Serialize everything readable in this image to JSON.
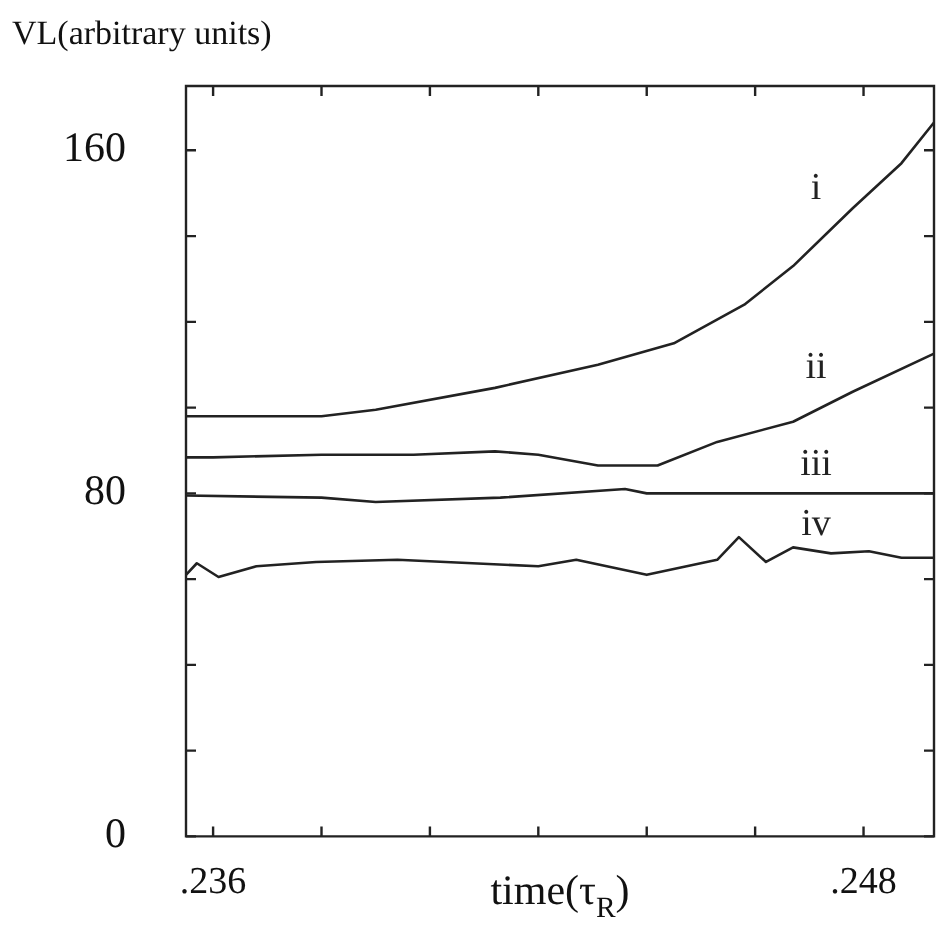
{
  "chart_data": {
    "type": "line",
    "ylabel": "VL(arbitrary units)",
    "xlabel": "time(τ$_{R}$)",
    "xlim": [
      0.2355,
      0.2493
    ],
    "ylim": [
      0,
      175
    ],
    "xticks": [
      {
        "value": 0.236,
        "label": ".236"
      },
      {
        "value": 0.238,
        "label": null
      },
      {
        "value": 0.24,
        "label": null
      },
      {
        "value": 0.242,
        "label": null
      },
      {
        "value": 0.244,
        "label": null
      },
      {
        "value": 0.246,
        "label": null
      },
      {
        "value": 0.248,
        "label": ".248"
      }
    ],
    "yticks": [
      0,
      {
        "value": 20,
        "label": null
      },
      {
        "value": 40,
        "label": null
      },
      {
        "value": 60,
        "label": null
      },
      80,
      {
        "value": 100,
        "label": null
      },
      {
        "value": 120,
        "label": null
      },
      {
        "value": 140,
        "label": null
      },
      160
    ],
    "grid": false,
    "legend": false,
    "marker": "none",
    "line_style": "solid",
    "series": [
      {
        "name": "i",
        "color": "#222222",
        "x": [
          0.2355,
          0.238,
          0.239,
          0.2412,
          0.2431,
          0.2445,
          0.2458,
          0.2467,
          0.2478,
          0.2487,
          0.2493
        ],
        "values": [
          98,
          98,
          99.5,
          104.6,
          110,
          115,
          124,
          133,
          146.5,
          157,
          166.5
        ]
      },
      {
        "name": "ii",
        "color": "#222222",
        "x": [
          0.2355,
          0.236,
          0.238,
          0.2397,
          0.2412,
          0.242,
          0.2431,
          0.2442,
          0.2453,
          0.2467,
          0.2478,
          0.2493
        ],
        "values": [
          88.4,
          88.4,
          89,
          89,
          89.8,
          89,
          86.5,
          86.5,
          92,
          96.7,
          103.7,
          112.6
        ]
      },
      {
        "name": "iii",
        "color": "#222222",
        "x": [
          0.2355,
          0.238,
          0.239,
          0.2413,
          0.2436,
          0.244,
          0.2493
        ],
        "values": [
          79.5,
          79,
          78,
          79,
          81,
          80,
          80
        ]
      },
      {
        "name": "iv",
        "color": "#222222",
        "x": [
          0.2355,
          0.2357,
          0.2361,
          0.2368,
          0.2379,
          0.2394,
          0.242,
          0.2427,
          0.244,
          0.2453,
          0.2457,
          0.2462,
          0.2467,
          0.2474,
          0.2481,
          0.2487,
          0.2493
        ],
        "values": [
          61,
          63.7,
          60.5,
          63,
          64,
          64.5,
          63,
          64.5,
          61,
          64.5,
          69.8,
          64,
          67.4,
          66,
          66.5,
          65,
          65
        ]
      }
    ]
  }
}
